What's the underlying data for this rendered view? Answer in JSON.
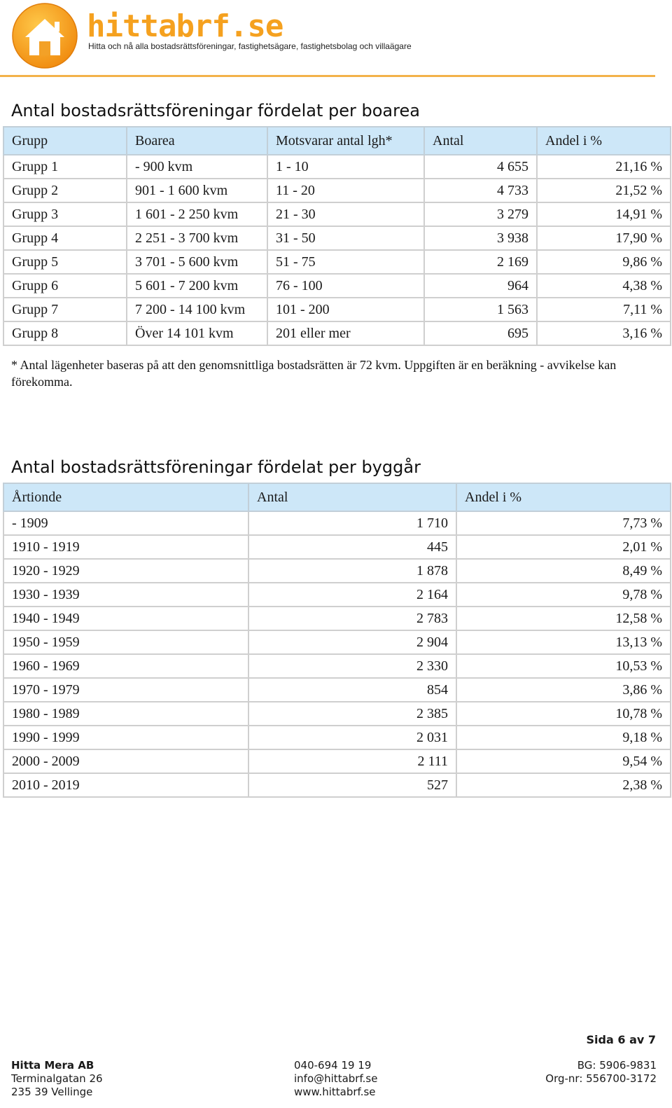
{
  "brand": {
    "name": "hittabrf.se",
    "tagline": "Hitta och nå alla bostadsrättsföreningar, fastighetsägare, fastighetsbolag och villaägare",
    "accent_color": "#f5a11f",
    "icon": "house-logo-icon"
  },
  "section_area": {
    "title": "Antal bostadsrättsföreningar fördelat per boarea",
    "headers": [
      "Grupp",
      "Boarea",
      "Motsvarar antal lgh*",
      "Antal",
      "Andel i %"
    ],
    "rows": [
      [
        "Grupp 1",
        "- 900 kvm",
        "1 - 10",
        "4 655",
        "21,16 %"
      ],
      [
        "Grupp 2",
        "901 - 1 600 kvm",
        "11 - 20",
        "4 733",
        "21,52 %"
      ],
      [
        "Grupp 3",
        "1 601 - 2 250 kvm",
        "21 - 30",
        "3 279",
        "14,91 %"
      ],
      [
        "Grupp 4",
        "2 251 - 3 700 kvm",
        "31 - 50",
        "3 938",
        "17,90 %"
      ],
      [
        "Grupp 5",
        "3 701 - 5 600 kvm",
        "51 - 75",
        "2 169",
        "9,86 %"
      ],
      [
        "Grupp 6",
        "5 601 - 7 200 kvm",
        "76 - 100",
        "964",
        "4,38 %"
      ],
      [
        "Grupp 7",
        "7 200 - 14 100 kvm",
        "101 - 200",
        "1 563",
        "7,11 %"
      ],
      [
        "Grupp 8",
        "Över 14 101 kvm",
        "201 eller mer",
        "695",
        "3,16 %"
      ]
    ],
    "footnote": "* Antal lägenheter baseras på att den genomsnittliga bostadsrätten är 72 kvm. Uppgiften är en beräkning - avvikelse kan förekomma."
  },
  "section_year": {
    "title": "Antal bostadsrättsföreningar fördelat per byggår",
    "headers": [
      "Årtionde",
      "Antal",
      "Andel i %"
    ],
    "rows": [
      [
        "- 1909",
        "1 710",
        "7,73 %"
      ],
      [
        "1910 - 1919",
        "445",
        "2,01 %"
      ],
      [
        "1920 - 1929",
        "1 878",
        "8,49 %"
      ],
      [
        "1930 - 1939",
        "2 164",
        "9,78 %"
      ],
      [
        "1940 - 1949",
        "2 783",
        "12,58 %"
      ],
      [
        "1950 - 1959",
        "2 904",
        "13,13 %"
      ],
      [
        "1960 - 1969",
        "2 330",
        "10,53 %"
      ],
      [
        "1970 - 1979",
        "854",
        "3,86 %"
      ],
      [
        "1980 - 1989",
        "2 385",
        "10,78 %"
      ],
      [
        "1990 - 1999",
        "2 031",
        "9,18 %"
      ],
      [
        "2000 - 2009",
        "2 111",
        "9,54 %"
      ],
      [
        "2010 - 2019",
        "527",
        "2,38 %"
      ]
    ]
  },
  "page_number": "Sida 6 av 7",
  "footer": {
    "company": "Hitta Mera AB",
    "street": "Terminalgatan 26",
    "city": "235 39 Vellinge",
    "phone": "040-694 19 19",
    "email": "info@hittabrf.se",
    "website": "www.hittabrf.se",
    "bankgiro": "BG: 5906-9831",
    "orgnr": "Org-nr: 556700-3172"
  },
  "colors": {
    "header_rule": "#f3b24a",
    "table_header_bg": "#cde7f8"
  }
}
